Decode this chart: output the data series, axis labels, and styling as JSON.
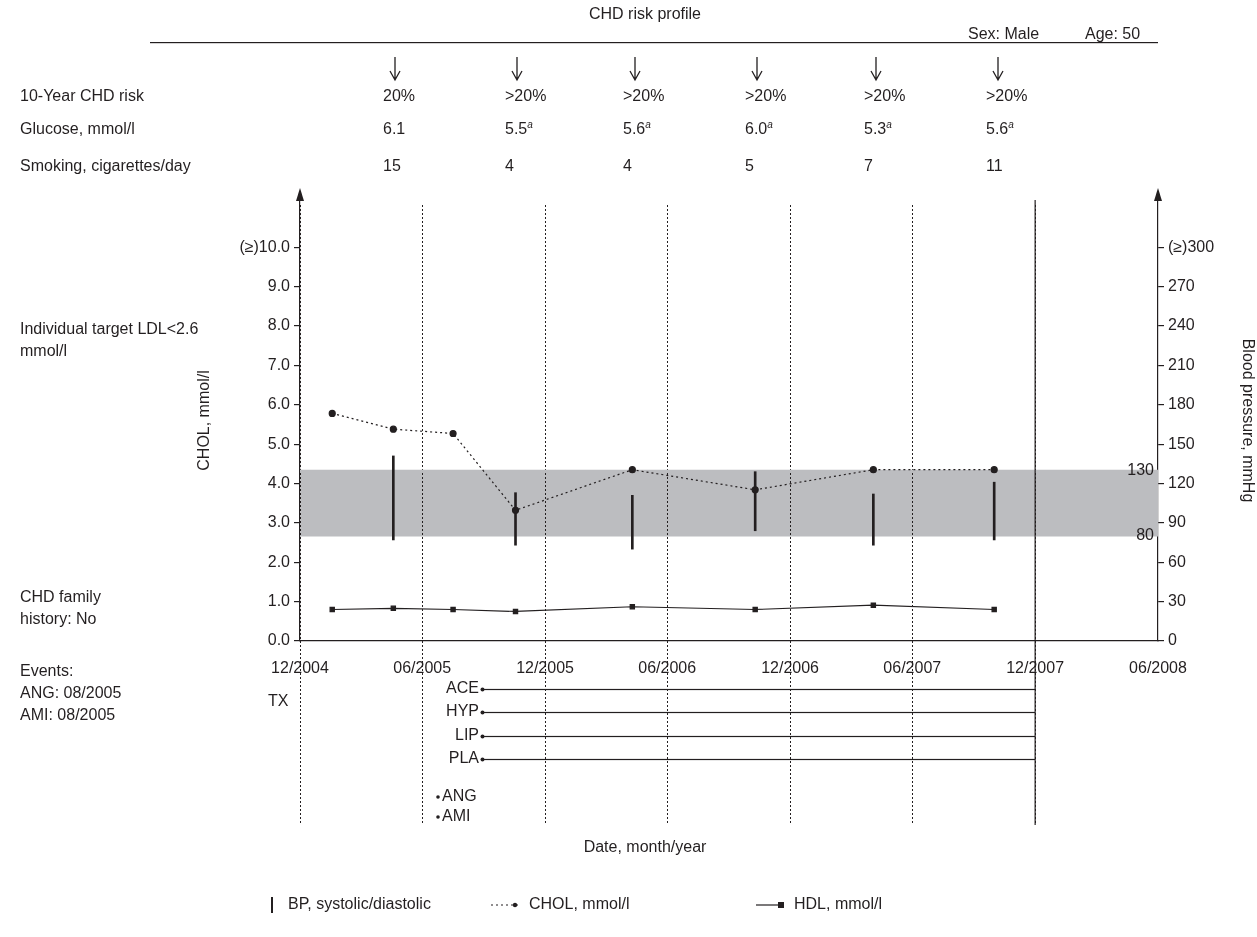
{
  "chart_data": {
    "type": "line",
    "title": "CHD risk profile",
    "ylabel": "CHOL, mmol/l",
    "y2label": "Blood pressure, mmHg",
    "xlim": [
      "2004-12-01",
      "2008-06-01"
    ],
    "xticks": [
      {
        "value": "2004-12-01",
        "label": "12/2004"
      },
      {
        "value": "2005-06-01",
        "label": "06/2005"
      },
      {
        "value": "2005-12-01",
        "label": "12/2005"
      },
      {
        "value": "2006-06-01",
        "label": "06/2006"
      },
      {
        "value": "2006-12-01",
        "label": "12/2006"
      },
      {
        "value": "2007-06-01",
        "label": "06/2007"
      },
      {
        "value": "2007-12-01",
        "label": "12/2007"
      },
      {
        "value": "2008-06-01",
        "label": "06/2008"
      }
    ],
    "ylim": [
      0,
      11.2
    ],
    "yticks": [
      {
        "value": 0,
        "label": "0.0"
      },
      {
        "value": 1,
        "label": "1.0"
      },
      {
        "value": 2,
        "label": "2.0"
      },
      {
        "value": 3,
        "label": "3.0"
      },
      {
        "value": 4,
        "label": "4.0"
      },
      {
        "value": 5,
        "label": "5.0"
      },
      {
        "value": 6,
        "label": "6.0"
      },
      {
        "value": 7,
        "label": "7.0"
      },
      {
        "value": 8,
        "label": "8.0"
      },
      {
        "value": 9,
        "label": "9.0"
      },
      {
        "value": 10,
        "label": "(≥)10.0"
      }
    ],
    "y2lim": [
      0,
      336
    ],
    "y2ticks": [
      0,
      30,
      60,
      90,
      120,
      150,
      180,
      210,
      240,
      270,
      {
        "value": 300,
        "label": "(≥)300"
      }
    ],
    "grid": "x",
    "legend": "bottom",
    "series": [
      {
        "name": "BP, systolic/diastolic",
        "type": "bar",
        "axis": "y2",
        "color": "#231f20",
        "x": [
          "2005-04-19",
          "2005-10-18",
          "2006-04-10",
          "2006-10-10",
          "2007-04-04",
          "2007-10-01"
        ],
        "base": [
          77,
          73,
          70,
          84,
          73,
          77
        ],
        "values": [
          64,
          40,
          41,
          45,
          39,
          44
        ]
      },
      {
        "name": "CHOL, mmol/l",
        "line_style": "dotted",
        "marker": "circle",
        "color": "#231f20",
        "x": [
          "2005-01-18",
          "2005-04-19",
          "2005-07-17",
          "2005-10-18",
          "2006-04-10",
          "2006-10-10",
          "2007-04-04",
          "2007-10-01"
        ],
        "values": [
          5.78,
          5.38,
          5.27,
          3.32,
          4.35,
          3.84,
          4.35,
          4.35
        ]
      },
      {
        "name": "HDL, mmol/l",
        "line_style": "solid",
        "marker": "square",
        "color": "#231f20",
        "x": [
          "2005-01-18",
          "2005-04-19",
          "2005-07-17",
          "2005-10-18",
          "2006-04-10",
          "2006-10-10",
          "2007-04-04",
          "2007-10-01"
        ],
        "values": [
          0.8,
          0.83,
          0.8,
          0.75,
          0.87,
          0.8,
          0.91,
          0.8
        ]
      }
    ],
    "bands": [
      {
        "axis": "y2",
        "from": 80,
        "to": 130,
        "color": "#bcbdc0"
      }
    ],
    "ref_lines": [
      {
        "axis": "y2",
        "value": 130,
        "label": "130",
        "color": "#bcbdc0"
      },
      {
        "axis": "y2",
        "value": 80,
        "label": "80",
        "color": "#bcbdc0"
      },
      {
        "axis": "x",
        "value": "2007-12-01",
        "color": "#231f20",
        "line_style": "solid"
      }
    ],
    "annotations": [
      "Sex: Male",
      "Age: 50",
      "10-Year CHD risk",
      "Glucose, mmol/l",
      "Smoking, cigarettes/day",
      "Individual target LDL<2.6 mmol/l",
      "CHD family history: No",
      "Events:",
      "ANG: 08/2005",
      "AMI: 08/2005",
      "TX",
      "20%",
      ">20%",
      ">20%",
      ">20%",
      ">20%",
      ">20%",
      "6.1",
      "5.5$^{a}$",
      "5.6$^{a}$",
      "6.0$^{a}$",
      "5.3$^{a}$",
      "5.6$^{a}$",
      "15",
      "4",
      "4",
      "5",
      "7",
      "11",
      "ACE",
      "HYP",
      "LIP",
      "PLA",
      "ANG",
      "AMI",
      "Date, month/year"
    ]
  }
}
